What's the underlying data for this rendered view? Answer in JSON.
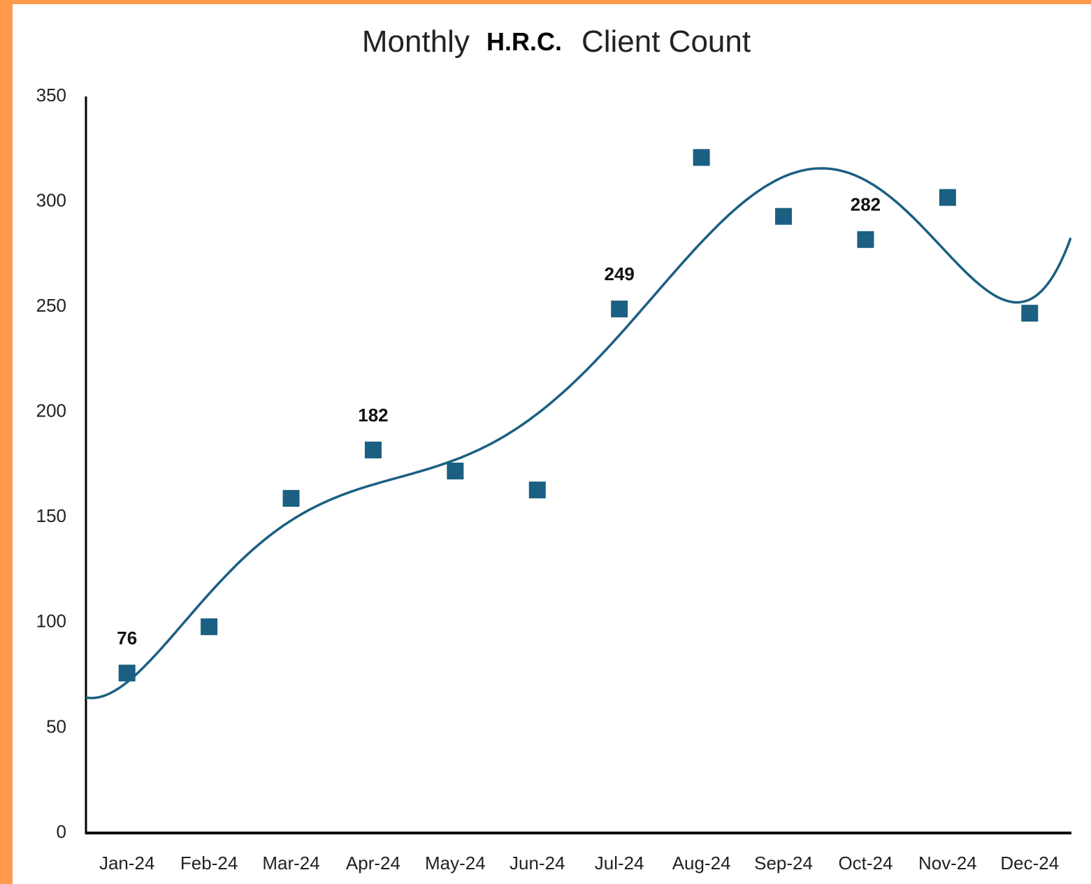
{
  "chart_data": {
    "type": "scatter",
    "title": {
      "prefix": "Monthly",
      "highlight": "H.R.C.",
      "suffix": "Client Count"
    },
    "categories": [
      "Jan-24",
      "Feb-24",
      "Mar-24",
      "Apr-24",
      "May-24",
      "Jun-24",
      "Jul-24",
      "Aug-24",
      "Sep-24",
      "Oct-24",
      "Nov-24",
      "Dec-24"
    ],
    "values": [
      76,
      98,
      159,
      182,
      172,
      163,
      249,
      321,
      293,
      282,
      302,
      247
    ],
    "value_labels": [
      "76",
      null,
      null,
      "182",
      null,
      null,
      "249",
      null,
      null,
      "282",
      null,
      null
    ],
    "color": "#1b5f82",
    "trendline": {
      "type": "polynomial",
      "order": 6,
      "color": "#1b5f82"
    },
    "ylim": [
      0,
      350
    ],
    "yticks": [
      0,
      50,
      100,
      150,
      200,
      250,
      300,
      350
    ],
    "grid": false
  }
}
